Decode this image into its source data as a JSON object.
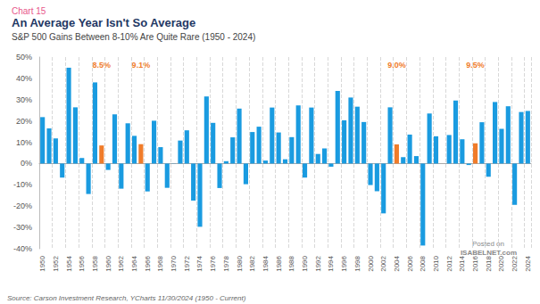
{
  "chart_data": {
    "type": "bar",
    "kicker": "Chart 15",
    "title": "An Average Year Isn't So Average",
    "subtitle": "S&P 500 Gains Between 8-10% Are Quite Rare (1950 - 2024)",
    "source": "Source: Carson Investment Research, YCharts 11/30/2024 (1950 - Current)",
    "watermark": [
      "Posted on",
      "ISABELNET.com"
    ],
    "categories": [
      "1950",
      null,
      "1952",
      null,
      "1954",
      null,
      "1956",
      null,
      "1958",
      null,
      "1960",
      null,
      "1962",
      null,
      "1964",
      null,
      "1966",
      null,
      "1968",
      null,
      "1970",
      null,
      "1972",
      null,
      "1974",
      null,
      "1976",
      null,
      "1978",
      null,
      "1980",
      null,
      "1982",
      null,
      "1984",
      null,
      "1986",
      null,
      "1988",
      null,
      "1990",
      null,
      "1992",
      null,
      "1994",
      null,
      "1996",
      null,
      "1998",
      null,
      "2000",
      null,
      "2002",
      null,
      "2004",
      null,
      "2006",
      null,
      "2008",
      null,
      "2010",
      null,
      "2012",
      null,
      "2014",
      null,
      "2016",
      null,
      "2018",
      null,
      "2020",
      null,
      "2022",
      null,
      "2024"
    ],
    "values": [
      21.8,
      16.5,
      11.8,
      -6.6,
      45.0,
      26.4,
      2.6,
      -14.3,
      38.1,
      8.5,
      -3.0,
      23.1,
      -11.8,
      18.9,
      13.0,
      9.1,
      -13.1,
      20.1,
      7.7,
      -11.4,
      0.1,
      10.8,
      15.6,
      -17.4,
      -29.7,
      31.5,
      19.1,
      -11.5,
      1.1,
      12.3,
      25.8,
      -9.7,
      14.8,
      17.3,
      1.4,
      26.3,
      14.6,
      2.0,
      12.4,
      27.3,
      -6.6,
      26.3,
      4.5,
      7.1,
      -1.5,
      34.1,
      20.3,
      31.0,
      26.7,
      19.5,
      -10.1,
      -13.0,
      -23.4,
      26.4,
      9.0,
      3.0,
      13.6,
      3.5,
      -38.5,
      23.5,
      12.8,
      0.0,
      13.4,
      29.6,
      11.4,
      -0.7,
      9.5,
      19.4,
      -6.2,
      28.9,
      16.3,
      26.9,
      -19.4,
      24.2,
      24.7
    ],
    "value_labels": [
      null,
      null,
      null,
      null,
      null,
      null,
      null,
      null,
      null,
      "8.5%",
      null,
      null,
      null,
      null,
      null,
      "9.1%",
      null,
      null,
      null,
      null,
      null,
      null,
      null,
      null,
      null,
      null,
      null,
      null,
      null,
      null,
      null,
      null,
      null,
      null,
      null,
      null,
      null,
      null,
      null,
      null,
      null,
      null,
      null,
      null,
      null,
      null,
      null,
      null,
      null,
      null,
      null,
      null,
      null,
      null,
      "9.0%",
      null,
      null,
      null,
      null,
      null,
      null,
      null,
      null,
      null,
      null,
      null,
      "9.5%",
      null,
      null,
      null,
      null,
      null,
      null,
      null,
      null
    ],
    "colors": [
      "#1a9be0",
      "#1a9be0",
      "#1a9be0",
      "#1a9be0",
      "#1a9be0",
      "#1a9be0",
      "#1a9be0",
      "#1a9be0",
      "#1a9be0",
      "#f07c2a",
      "#1a9be0",
      "#1a9be0",
      "#1a9be0",
      "#1a9be0",
      "#1a9be0",
      "#f07c2a",
      "#1a9be0",
      "#1a9be0",
      "#1a9be0",
      "#1a9be0",
      "#1a9be0",
      "#1a9be0",
      "#1a9be0",
      "#1a9be0",
      "#1a9be0",
      "#1a9be0",
      "#1a9be0",
      "#1a9be0",
      "#1a9be0",
      "#1a9be0",
      "#1a9be0",
      "#1a9be0",
      "#1a9be0",
      "#1a9be0",
      "#1a9be0",
      "#1a9be0",
      "#1a9be0",
      "#1a9be0",
      "#1a9be0",
      "#1a9be0",
      "#1a9be0",
      "#1a9be0",
      "#1a9be0",
      "#1a9be0",
      "#1a9be0",
      "#1a9be0",
      "#1a9be0",
      "#1a9be0",
      "#1a9be0",
      "#1a9be0",
      "#1a9be0",
      "#1a9be0",
      "#1a9be0",
      "#1a9be0",
      "#f07c2a",
      "#1a9be0",
      "#1a9be0",
      "#1a9be0",
      "#1a9be0",
      "#1a9be0",
      "#1a9be0",
      "#1a9be0",
      "#1a9be0",
      "#1a9be0",
      "#1a9be0",
      "#1a9be0",
      "#f07c2a",
      "#1a9be0",
      "#1a9be0",
      "#1a9be0",
      "#1a9be0",
      "#1a9be0",
      "#1a9be0",
      "#1a9be0",
      "#1a9be0"
    ],
    "ylim": [
      -40,
      50
    ],
    "yticks": [
      {
        "value": -40,
        "label": "-40%"
      },
      {
        "value": -30,
        "label": "-30%"
      },
      {
        "value": -20,
        "label": "-20%"
      },
      {
        "value": -10,
        "label": "-10%"
      },
      {
        "value": 0,
        "label": "0%"
      },
      {
        "value": 10,
        "label": "10%"
      },
      {
        "value": 20,
        "label": "20%"
      },
      {
        "value": 30,
        "label": "30%"
      },
      {
        "value": 40,
        "label": "40%"
      },
      {
        "value": 50,
        "label": "50%"
      }
    ],
    "grid": true,
    "data_labels": true
  }
}
